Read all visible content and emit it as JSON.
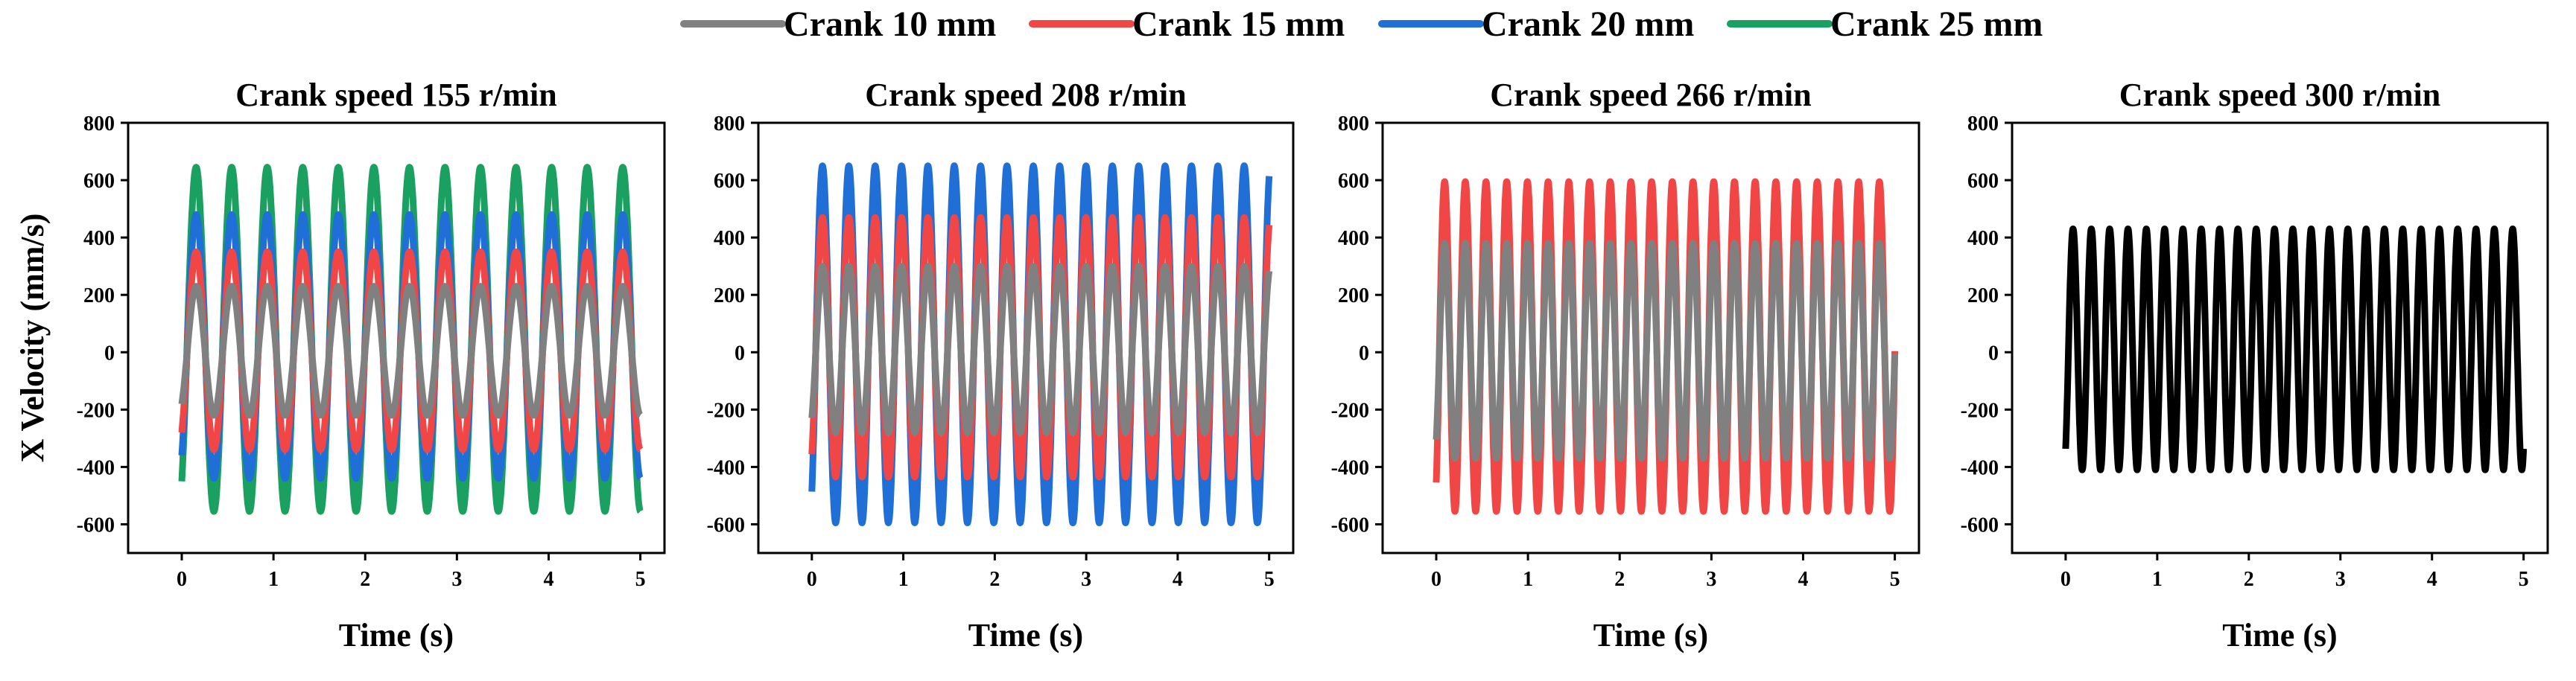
{
  "legend": {
    "items": [
      {
        "label": "Crank 10 mm",
        "color": "#808080"
      },
      {
        "label": "Crank 15 mm",
        "color": "#f04646"
      },
      {
        "label": "Crank 20 mm",
        "color": "#1f6fd6"
      },
      {
        "label": "Crank 25 mm",
        "color": "#1aa060"
      }
    ]
  },
  "chart_data": [
    {
      "type": "line",
      "title": "Crank speed 155 r/min",
      "xlabel": "Time (s)",
      "ylabel": "X Velocity (mm/s)",
      "xlim": [
        0,
        5
      ],
      "ylim": [
        -700,
        800
      ],
      "xticks": [
        0,
        1,
        2,
        3,
        4,
        5
      ],
      "yticks": [
        -600,
        -400,
        -200,
        0,
        200,
        400,
        600,
        800
      ],
      "cycle_frequency_hz": 2.58,
      "series": [
        {
          "name": "Crank 25 mm",
          "color": "#1aa060",
          "max": 645,
          "min": -555
        },
        {
          "name": "Crank 20 mm",
          "color": "#1f6fd6",
          "max": 480,
          "min": -440
        },
        {
          "name": "Crank 15 mm",
          "color": "#f04646",
          "max": 350,
          "min": -340
        },
        {
          "name": "Crank 10 mm",
          "color": "#808080",
          "max": 230,
          "min": -220
        }
      ]
    },
    {
      "type": "line",
      "title": "Crank speed 208 r/min",
      "xlabel": "Time (s)",
      "ylabel": "",
      "xlim": [
        0,
        5
      ],
      "ylim": [
        -700,
        800
      ],
      "xticks": [
        0,
        1,
        2,
        3,
        4,
        5
      ],
      "yticks": [
        -600,
        -400,
        -200,
        0,
        200,
        400,
        600,
        800
      ],
      "cycle_frequency_hz": 3.47,
      "series": [
        {
          "name": "Crank 20 mm",
          "color": "#1f6fd6",
          "max": 650,
          "min": -595
        },
        {
          "name": "Crank 15 mm",
          "color": "#f04646",
          "max": 470,
          "min": -435
        },
        {
          "name": "Crank 10 mm",
          "color": "#808080",
          "max": 300,
          "min": -280
        }
      ]
    },
    {
      "type": "line",
      "title": "Crank speed 266 r/min",
      "xlabel": "Time (s)",
      "ylabel": "",
      "xlim": [
        0,
        5
      ],
      "ylim": [
        -700,
        800
      ],
      "xticks": [
        0,
        1,
        2,
        3,
        4,
        5
      ],
      "yticks": [
        -600,
        -400,
        -200,
        0,
        200,
        400,
        600,
        800
      ],
      "cycle_frequency_hz": 4.43,
      "series": [
        {
          "name": "Crank 15 mm",
          "color": "#f04646",
          "max": 595,
          "min": -555
        },
        {
          "name": "Crank 10 mm",
          "color": "#808080",
          "max": 380,
          "min": -370
        }
      ]
    },
    {
      "type": "line",
      "title": "Crank speed 300 r/min",
      "xlabel": "Time (s)",
      "ylabel": "",
      "xlim": [
        0,
        5
      ],
      "ylim": [
        -700,
        800
      ],
      "xticks": [
        0,
        1,
        2,
        3,
        4,
        5
      ],
      "yticks": [
        -600,
        -400,
        -200,
        0,
        200,
        400,
        600,
        800
      ],
      "cycle_frequency_hz": 5.0,
      "series": [
        {
          "name": "",
          "color": "#000000",
          "max": 430,
          "min": -410
        }
      ]
    }
  ]
}
